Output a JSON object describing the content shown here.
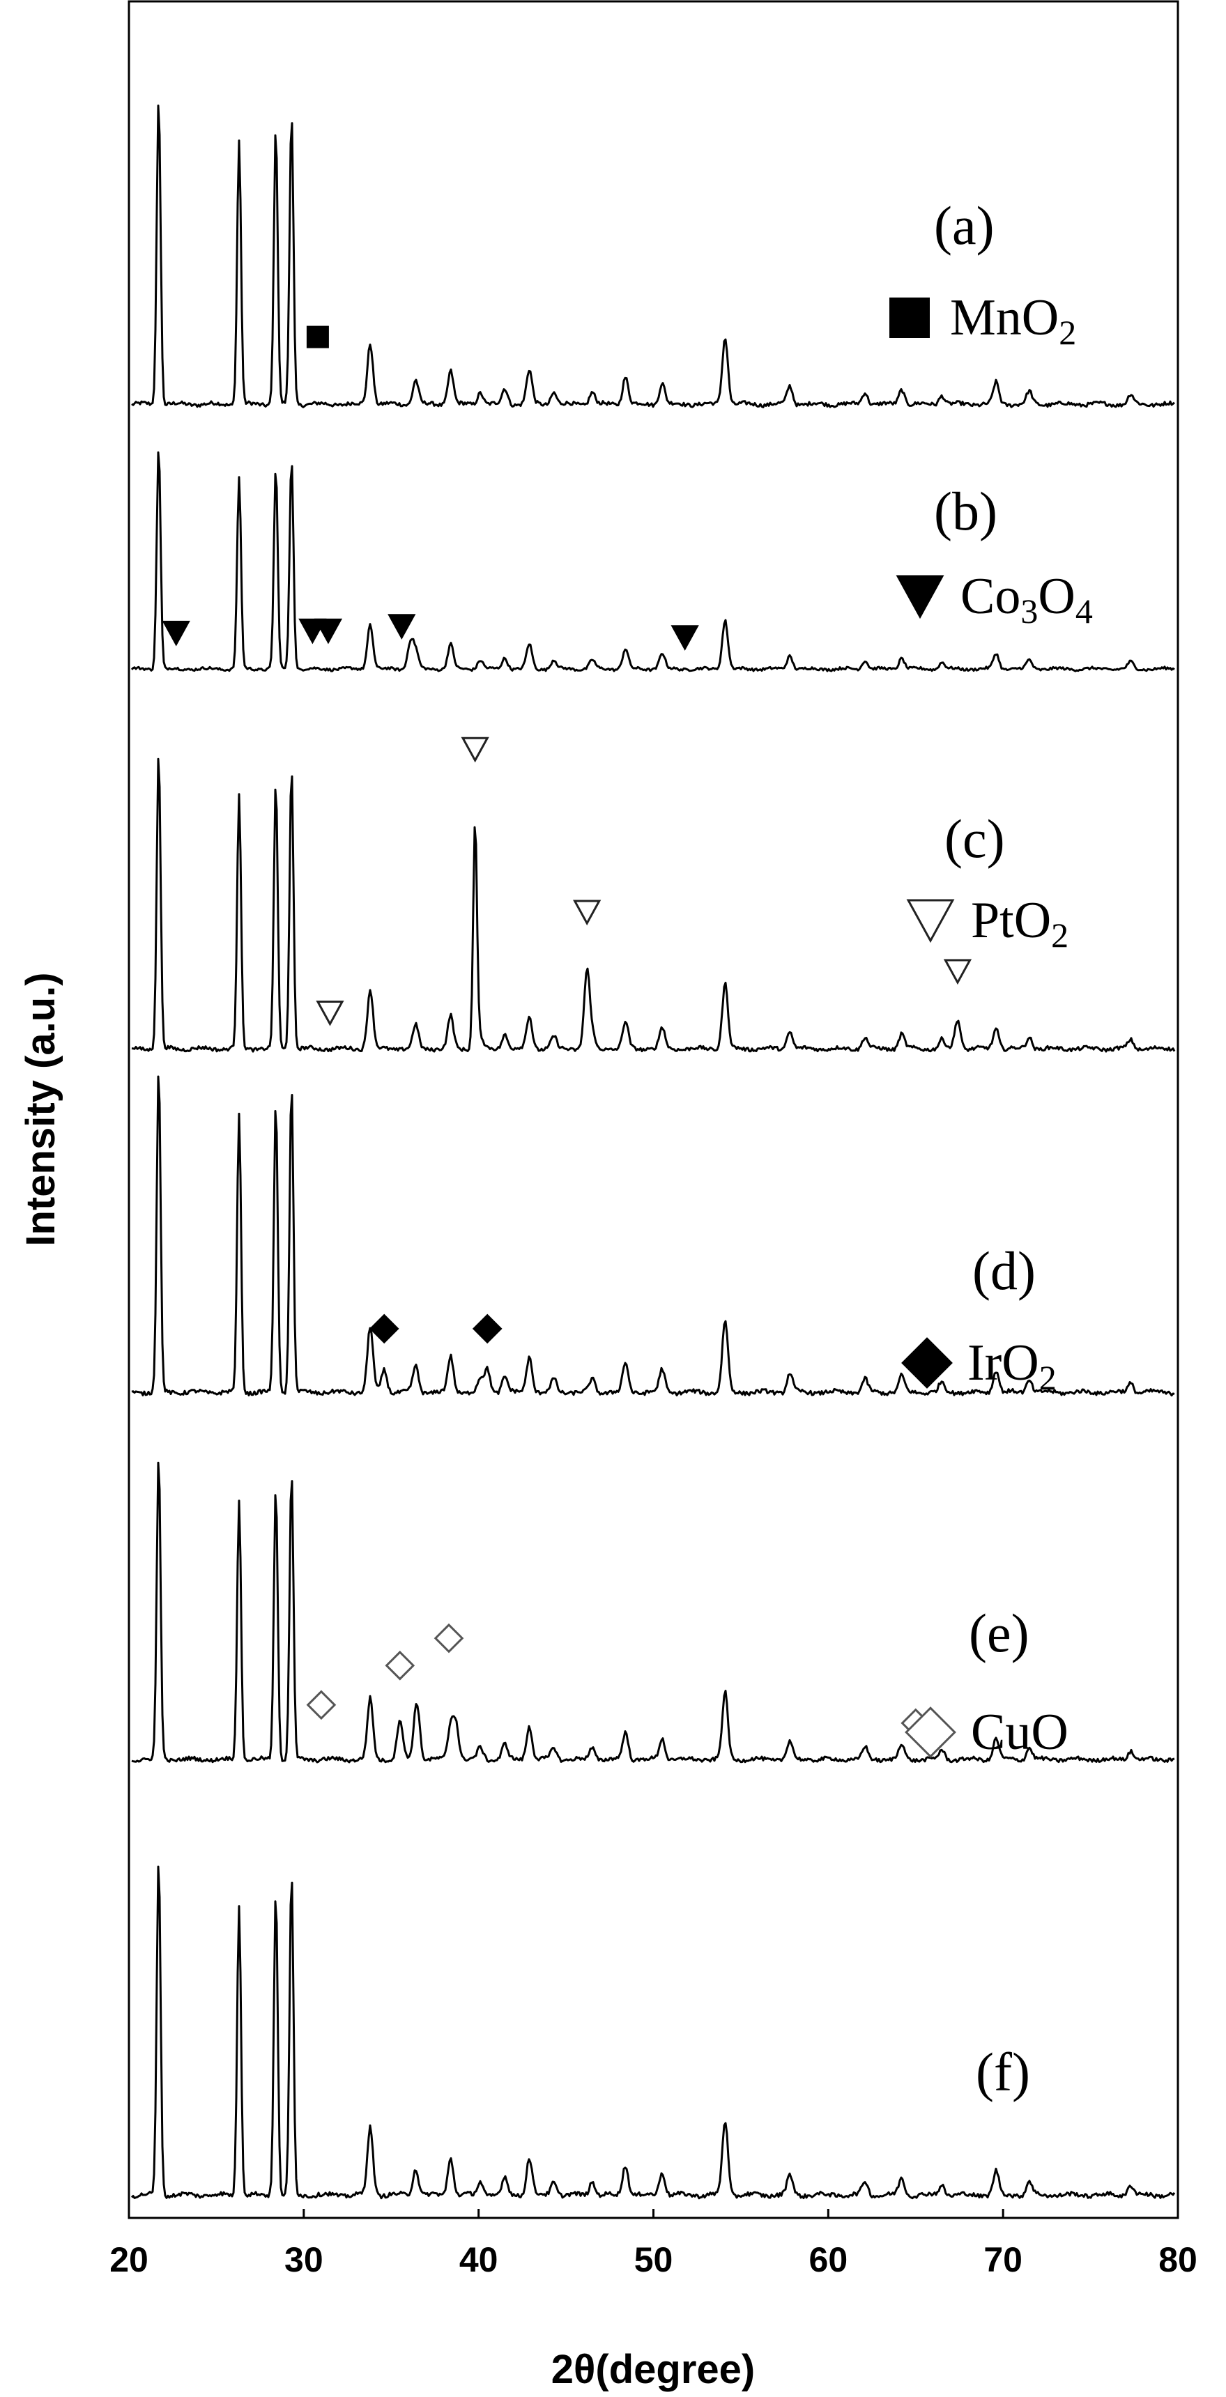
{
  "chart_data": {
    "type": "line",
    "title": "",
    "xlabel": "2θ(degree)",
    "ylabel": "Intensity (a.u.)",
    "xlim": [
      20,
      80
    ],
    "xticks": [
      "20",
      "30",
      "40",
      "50",
      "60",
      "70",
      "80"
    ],
    "grid": false,
    "legend_placement": "right, beside each pattern",
    "base_peaks": [
      {
        "x": 21.7,
        "i": 1.0
      },
      {
        "x": 26.3,
        "i": 0.86
      },
      {
        "x": 28.4,
        "i": 0.9
      },
      {
        "x": 29.3,
        "i": 0.95
      },
      {
        "x": 33.8,
        "i": 0.2
      },
      {
        "x": 36.4,
        "i": 0.08
      },
      {
        "x": 38.4,
        "i": 0.11
      },
      {
        "x": 40.1,
        "i": 0.04
      },
      {
        "x": 41.5,
        "i": 0.05
      },
      {
        "x": 42.9,
        "i": 0.11
      },
      {
        "x": 44.3,
        "i": 0.04
      },
      {
        "x": 46.5,
        "i": 0.04
      },
      {
        "x": 48.4,
        "i": 0.09
      },
      {
        "x": 50.5,
        "i": 0.07
      },
      {
        "x": 54.1,
        "i": 0.22
      },
      {
        "x": 57.8,
        "i": 0.06
      },
      {
        "x": 62.1,
        "i": 0.04
      },
      {
        "x": 64.2,
        "i": 0.05
      },
      {
        "x": 66.5,
        "i": 0.03
      },
      {
        "x": 69.6,
        "i": 0.07
      },
      {
        "x": 71.5,
        "i": 0.04
      },
      {
        "x": 77.3,
        "i": 0.03
      }
    ],
    "series": [
      {
        "label": "(a)",
        "legend": {
          "text": "MnO",
          "sub": "2",
          "marker": "filled-square"
        },
        "extra_peaks": [],
        "markers": [
          {
            "x": 30.8,
            "i": 0.16
          }
        ]
      },
      {
        "label": "(b)",
        "legend": {
          "text": "Co",
          "sub": "3",
          "text2": "O",
          "sub2": "4",
          "marker": "filled-down-triangle"
        },
        "extra_peaks": [
          {
            "x": 36.1,
            "i": 0.12
          }
        ],
        "markers": [
          {
            "x": 22.7,
            "i": 0.08
          },
          {
            "x": 30.5,
            "i": 0.09
          },
          {
            "x": 31.4,
            "i": 0.09
          },
          {
            "x": 35.6,
            "i": 0.11
          },
          {
            "x": 51.8,
            "i": 0.06
          }
        ]
      },
      {
        "label": "(c)",
        "legend": {
          "text": "PtO",
          "sub": "2",
          "marker": "open-down-triangle"
        },
        "extra_peaks": [
          {
            "x": 39.8,
            "i": 0.76
          },
          {
            "x": 46.2,
            "i": 0.26
          },
          {
            "x": 67.4,
            "i": 0.1
          }
        ],
        "markers": [
          {
            "x": 31.5,
            "i": 0.06
          },
          {
            "x": 39.8,
            "i": 0.95
          },
          {
            "x": 46.2,
            "i": 0.4
          },
          {
            "x": 67.4,
            "i": 0.2
          }
        ]
      },
      {
        "label": "(d)",
        "legend": {
          "text": "IrO",
          "sub": "2",
          "marker": "filled-diamond"
        },
        "extra_peaks": [
          {
            "x": 34.6,
            "i": 0.07
          },
          {
            "x": 40.5,
            "i": 0.07
          }
        ],
        "markers": [
          {
            "x": 34.6,
            "i": 0.14
          },
          {
            "x": 40.5,
            "i": 0.14
          }
        ]
      },
      {
        "label": "(e)",
        "legend": {
          "text": "CuO",
          "marker": "open-diamond"
        },
        "extra_peaks": [
          {
            "x": 35.5,
            "i": 0.13
          },
          {
            "x": 36.5,
            "i": 0.12
          },
          {
            "x": 38.7,
            "i": 0.12
          }
        ],
        "markers": [
          {
            "x": 31.0,
            "i": 0.12
          },
          {
            "x": 35.5,
            "i": 0.25
          },
          {
            "x": 38.3,
            "i": 0.34
          },
          {
            "x": 65.0,
            "i": 0.06
          }
        ]
      },
      {
        "label": "(f)",
        "extra_peaks": [],
        "markers": []
      }
    ]
  }
}
